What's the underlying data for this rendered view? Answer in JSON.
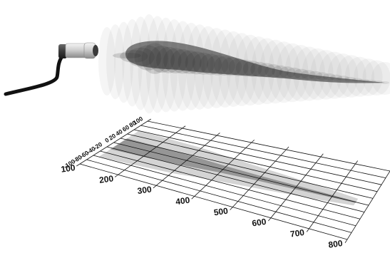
{
  "diagram": {
    "type": "ultrasonic-sensor-beam-pattern",
    "components": {
      "sensor": "cylindrical-ultrasonic-sensor",
      "cable": "sensor-cable",
      "beam": "sound-cone-3d",
      "footprint": "detection-area-projection"
    },
    "colors": {
      "cable": "#111111",
      "sensor_body": "#cfcfcf",
      "beam_outer": "#d9d9d9",
      "beam_inner": "#333333",
      "footprint_outer": "#cfcfcf",
      "footprint_inner": "#9a9a9a",
      "grid": "#111111"
    }
  },
  "axes": {
    "lateral_ticks": [
      "-100",
      "-80",
      "-60",
      "-40",
      "-20",
      "0",
      "20",
      "40",
      "60",
      "80",
      "100"
    ],
    "distance_ticks": [
      "100",
      "200",
      "300",
      "400",
      "500",
      "600",
      "700",
      "800"
    ]
  },
  "beam_profile": {
    "distance": [
      100,
      200,
      300,
      400,
      500,
      600,
      700,
      800
    ],
    "outer_halfwidth": [
      60,
      55,
      50,
      40,
      32,
      25,
      18,
      10
    ],
    "inner_halfwidth": [
      25,
      22,
      18,
      12,
      8,
      6,
      4,
      2
    ]
  }
}
